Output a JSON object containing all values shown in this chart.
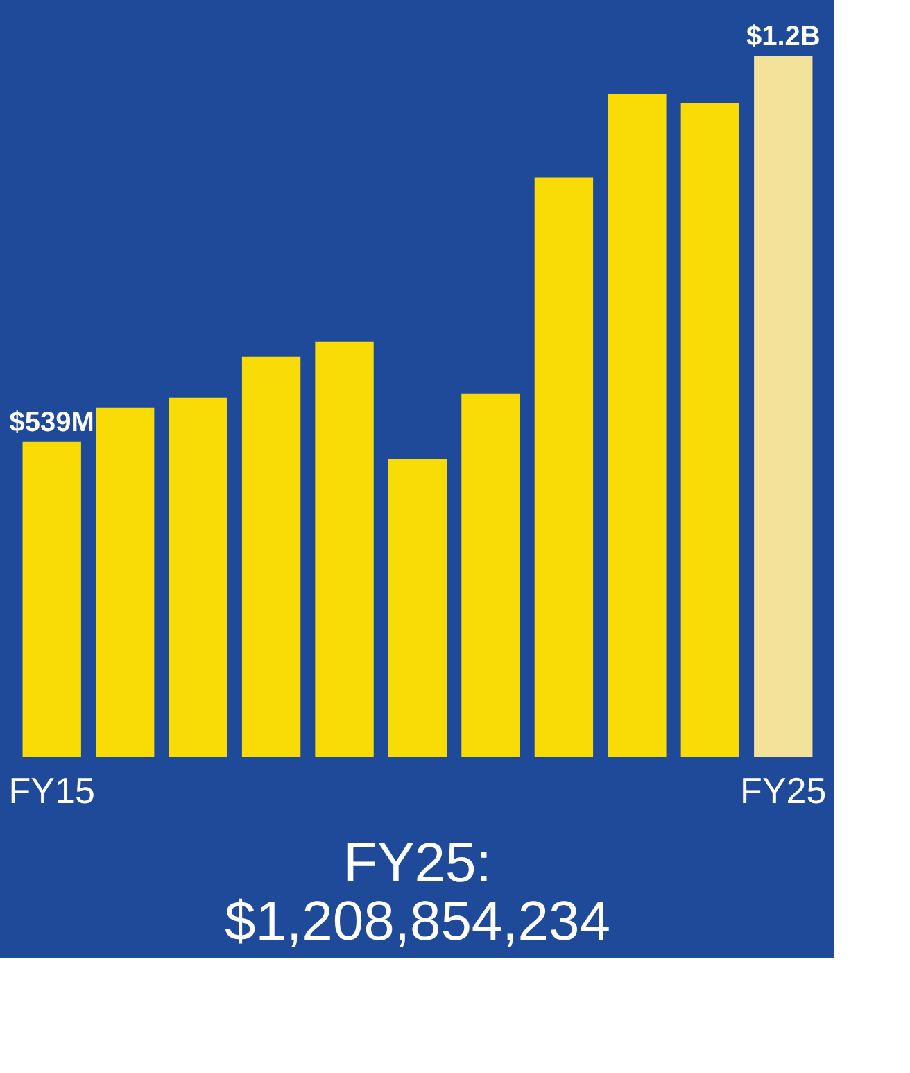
{
  "chart_data": {
    "type": "bar",
    "categories": [
      "FY15",
      null,
      null,
      null,
      null,
      null,
      null,
      null,
      null,
      null,
      "FY25"
    ],
    "values": [
      539000000,
      597000000,
      615000000,
      685000000,
      710000000,
      509000000,
      622000000,
      992000000,
      1135000000,
      1119000000,
      1200000000
    ],
    "colors": [
      "#f9dc05",
      "#f9dc05",
      "#f9dc05",
      "#f9dc05",
      "#f9dc05",
      "#f9dc05",
      "#f9dc05",
      "#f9dc05",
      "#f9dc05",
      "#f9dc05",
      "#f3e39a"
    ],
    "value_labels": [
      "$539M",
      null,
      null,
      null,
      null,
      null,
      null,
      null,
      null,
      null,
      "$1.2B"
    ],
    "annotations": [
      "FY25:",
      "$1,208,854,234"
    ],
    "grid": false
  }
}
